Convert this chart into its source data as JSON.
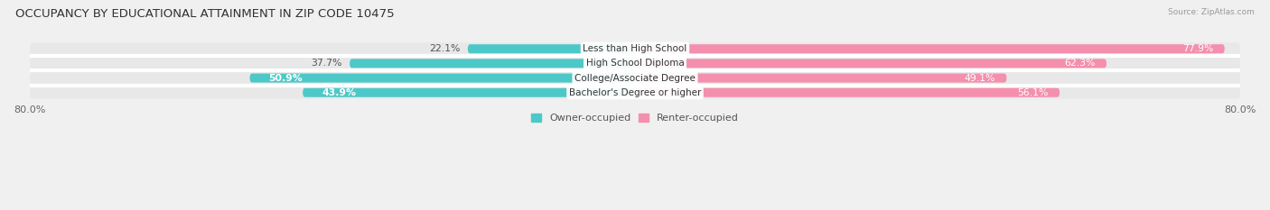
{
  "title": "OCCUPANCY BY EDUCATIONAL ATTAINMENT IN ZIP CODE 10475",
  "source": "Source: ZipAtlas.com",
  "categories": [
    "Less than High School",
    "High School Diploma",
    "College/Associate Degree",
    "Bachelor's Degree or higher"
  ],
  "owner_pct": [
    22.1,
    37.7,
    50.9,
    43.9
  ],
  "renter_pct": [
    77.9,
    62.3,
    49.1,
    56.1
  ],
  "owner_color": "#4DC8C8",
  "renter_color": "#F48FAD",
  "background_color": "#f0f0f0",
  "bar_bg_color": "#dcdcdc",
  "row_bg_color": "#e8e8e8",
  "xlim": 80.0,
  "bar_height": 0.62,
  "title_fontsize": 9.5,
  "legend_fontsize": 8,
  "axis_label_fontsize": 8,
  "value_fontsize": 7.8,
  "category_fontsize": 7.5
}
